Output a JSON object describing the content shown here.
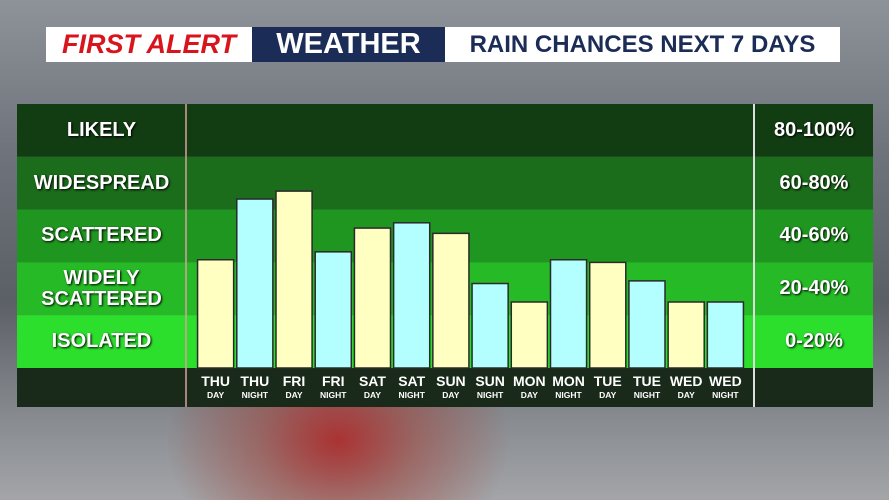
{
  "header": {
    "brand": "FIRST ALERT",
    "section": "WEATHER",
    "title": "RAIN CHANCES NEXT 7 DAYS"
  },
  "chart_data": {
    "type": "bar",
    "categories": [
      "THU",
      "THU",
      "FRI",
      "FRI",
      "SAT",
      "SAT",
      "SUN",
      "SUN",
      "MON",
      "MON",
      "TUE",
      "TUE",
      "WED",
      "WED"
    ],
    "periods": [
      "DAY",
      "NIGHT",
      "DAY",
      "NIGHT",
      "DAY",
      "NIGHT",
      "DAY",
      "NIGHT",
      "DAY",
      "NIGHT",
      "DAY",
      "NIGHT",
      "DAY",
      "NIGHT"
    ],
    "values": [
      41,
      64,
      67,
      44,
      53,
      55,
      51,
      32,
      25,
      41,
      40,
      33,
      25,
      25
    ],
    "day_color": "#ffffc2",
    "night_color": "#b3ffff",
    "ylim": [
      0,
      100
    ],
    "bands": [
      {
        "label": "LIKELY",
        "range": "80-100%",
        "from": 80,
        "to": 100,
        "color": "#123d12"
      },
      {
        "label": "WIDESPREAD",
        "range": "60-80%",
        "from": 60,
        "to": 80,
        "color": "#1b6c1b"
      },
      {
        "label": "SCATTERED",
        "range": "40-60%",
        "from": 40,
        "to": 60,
        "color": "#1f961f"
      },
      {
        "label": "WIDELY SCATTERED",
        "range": "20-40%",
        "from": 20,
        "to": 40,
        "color": "#26bb26"
      },
      {
        "label": "ISOLATED",
        "range": "0-20%",
        "from": 0,
        "to": 20,
        "color": "#2ddf2d"
      }
    ]
  }
}
